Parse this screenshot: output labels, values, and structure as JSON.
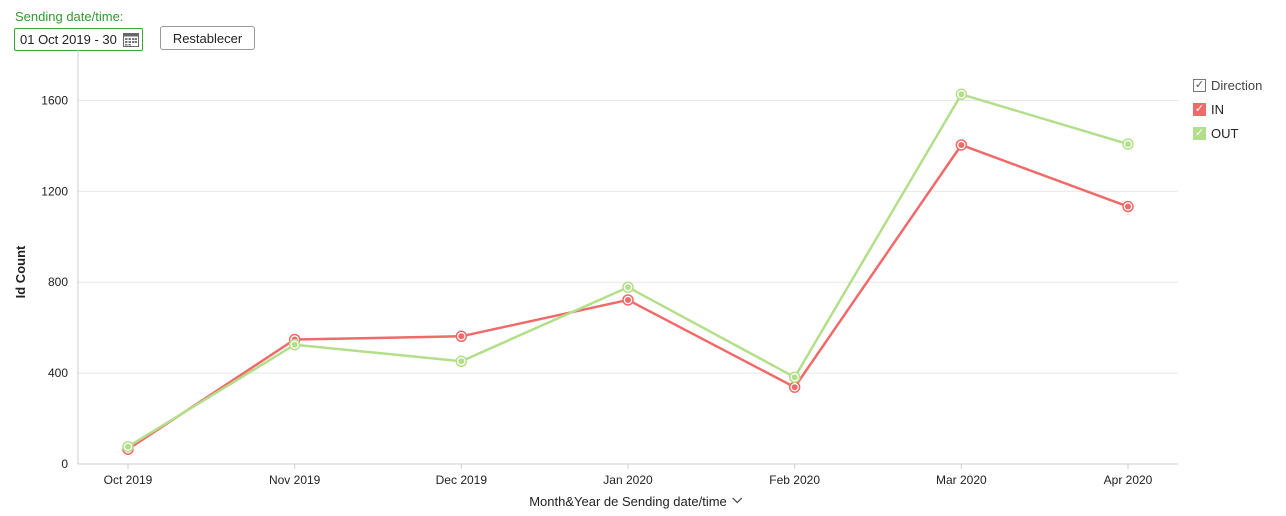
{
  "filter": {
    "label": "Sending date/time:",
    "value": "01 Oct 2019 - 30",
    "icon": "calendar-icon",
    "reset_label": "Restablecer"
  },
  "colors": {
    "in": "#f06a6a",
    "out": "#b3df8a",
    "filter_green": "#2e9b2e",
    "grid": "#e8e8e8"
  },
  "legend": {
    "title": "Direction",
    "placement": "top-right",
    "items": [
      {
        "label": "IN",
        "checked": true
      },
      {
        "label": "OUT",
        "checked": true
      }
    ]
  },
  "chart_data": {
    "type": "line",
    "categories": [
      "Oct 2019",
      "Nov 2019",
      "Dec 2019",
      "Jan 2020",
      "Feb 2020",
      "Mar 2020",
      "Apr 2020"
    ],
    "series": [
      {
        "name": "IN",
        "values": [
          65,
          548,
          562,
          722,
          338,
          1404,
          1133
        ]
      },
      {
        "name": "OUT",
        "values": [
          76,
          525,
          452,
          778,
          382,
          1627,
          1408
        ]
      }
    ],
    "xlabel": "Month&Year de Sending date/time",
    "ylabel": "Id Count",
    "ylim": [
      0,
      1800
    ],
    "yticks": [
      0,
      400,
      800,
      1200,
      1600
    ],
    "grid": true
  }
}
